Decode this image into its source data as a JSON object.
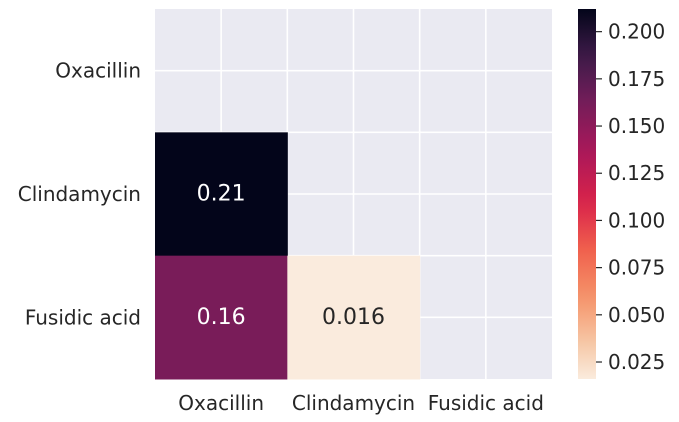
{
  "chart_data": {
    "type": "heatmap",
    "title": "",
    "xlabel": "",
    "ylabel": "",
    "x_categories": [
      "Oxacillin",
      "Clindamycin",
      "Fusidic acid"
    ],
    "y_categories": [
      "Oxacillin",
      "Clindamycin",
      "Fusidic acid"
    ],
    "mask": "upper triangle including diagonal (masked cells not drawn)",
    "cells": [
      {
        "x": "Oxacillin",
        "y": "Clindamycin",
        "value": 0.212,
        "label": "0.21",
        "label_color": "#ffffff"
      },
      {
        "x": "Oxacillin",
        "y": "Fusidic acid",
        "value": 0.16,
        "label": "0.16",
        "label_color": "#ffffff"
      },
      {
        "x": "Clindamycin",
        "y": "Fusidic acid",
        "value": 0.016,
        "label": "0.016",
        "label_color": "#262626"
      }
    ],
    "colorbar": {
      "colormap": "rocket_r",
      "range": [
        0.016,
        0.212
      ],
      "ticks": [
        0.025,
        0.05,
        0.075,
        0.1,
        0.125,
        0.15,
        0.175,
        0.2
      ],
      "tick_labels": [
        "0.025",
        "0.050",
        "0.075",
        "0.100",
        "0.125",
        "0.150",
        "0.175",
        "0.200"
      ]
    },
    "grid": true,
    "background": "#eaeaf2"
  }
}
